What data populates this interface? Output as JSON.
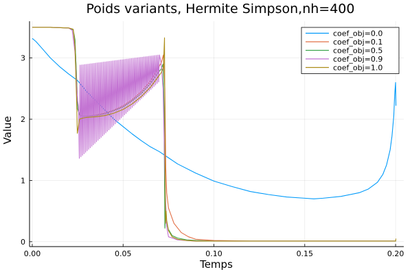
{
  "chart_data": {
    "type": "line",
    "title": "Poids variants, Hermite Simpson,nh=400",
    "xlabel": "Temps",
    "ylabel": "Value",
    "xlim": [
      -0.0015,
      0.2045
    ],
    "ylim": [
      -0.08,
      3.6
    ],
    "xticks": [
      0.0,
      0.05,
      0.1,
      0.15,
      0.2
    ],
    "xtick_labels": [
      "0.00",
      "0.05",
      "0.10",
      "0.15",
      "0.20"
    ],
    "yticks": [
      0,
      1,
      2,
      3
    ],
    "ytick_labels": [
      "0",
      "1",
      "2",
      "3"
    ],
    "grid": true,
    "legend": "top-right",
    "series": [
      {
        "name": "coef_obj=0.0",
        "color": "#009AFA",
        "x": [
          0.0,
          0.002,
          0.005,
          0.01,
          0.015,
          0.02,
          0.025,
          0.03,
          0.035,
          0.04,
          0.045,
          0.05,
          0.055,
          0.06,
          0.065,
          0.07,
          0.075,
          0.08,
          0.09,
          0.1,
          0.11,
          0.12,
          0.13,
          0.14,
          0.15,
          0.155,
          0.16,
          0.17,
          0.18,
          0.185,
          0.19,
          0.193,
          0.195,
          0.197,
          0.198,
          0.199,
          0.1995,
          0.2,
          0.2002
        ],
        "y": [
          3.32,
          3.27,
          3.17,
          3.0,
          2.86,
          2.74,
          2.63,
          2.45,
          2.3,
          2.15,
          2.0,
          1.88,
          1.76,
          1.65,
          1.55,
          1.47,
          1.37,
          1.27,
          1.12,
          0.99,
          0.9,
          0.82,
          0.77,
          0.73,
          0.71,
          0.7,
          0.71,
          0.74,
          0.8,
          0.86,
          0.97,
          1.1,
          1.25,
          1.5,
          1.72,
          2.05,
          2.4,
          2.6,
          2.22
        ]
      },
      {
        "name": "coef_obj=0.1",
        "color": "#E26F46",
        "x": [
          0.0,
          0.01,
          0.02,
          0.0225,
          0.0235,
          0.0245,
          0.025,
          0.026,
          0.028,
          0.03,
          0.035,
          0.04,
          0.045,
          0.05,
          0.055,
          0.06,
          0.065,
          0.069,
          0.071,
          0.0722,
          0.073,
          0.0735,
          0.074,
          0.075,
          0.078,
          0.082,
          0.086,
          0.09,
          0.1,
          0.12,
          0.15,
          0.2,
          0.2002
        ],
        "y": [
          3.5,
          3.5,
          3.49,
          3.47,
          3.3,
          2.6,
          2.17,
          2.07,
          2.05,
          2.05,
          2.07,
          2.1,
          2.15,
          2.22,
          2.32,
          2.45,
          2.62,
          2.82,
          2.92,
          3.05,
          2.5,
          1.2,
          0.8,
          0.55,
          0.3,
          0.15,
          0.08,
          0.04,
          0.02,
          0.01,
          0.01,
          0.01,
          0.02
        ]
      },
      {
        "name": "coef_obj=0.5",
        "color": "#3EA44E",
        "x": [
          0.0,
          0.01,
          0.02,
          0.0225,
          0.0235,
          0.0245,
          0.025,
          0.026,
          0.028,
          0.03,
          0.035,
          0.04,
          0.045,
          0.05,
          0.055,
          0.06,
          0.065,
          0.069,
          0.071,
          0.072,
          0.0725,
          0.073,
          0.0735,
          0.074,
          0.075,
          0.077,
          0.08,
          0.085,
          0.09,
          0.1,
          0.15,
          0.2,
          0.2002
        ],
        "y": [
          3.5,
          3.5,
          3.49,
          3.46,
          3.3,
          2.6,
          2.17,
          2.07,
          2.05,
          2.05,
          2.06,
          2.09,
          2.14,
          2.2,
          2.3,
          2.42,
          2.58,
          2.75,
          2.82,
          2.9,
          2.2,
          0.22,
          0.45,
          0.3,
          0.2,
          0.1,
          0.06,
          0.03,
          0.02,
          0.01,
          0.01,
          0.01,
          0.02
        ]
      },
      {
        "name": "coef_obj=0.9",
        "color": "#C271D2",
        "x": [
          0.0,
          0.01,
          0.02,
          0.022,
          0.0235,
          0.0245,
          0.025,
          0.0255,
          0.07,
          0.071,
          0.072,
          0.0725,
          0.073,
          0.0735,
          0.074,
          0.075,
          0.08,
          0.09,
          0.1,
          0.15,
          0.2
        ],
        "y": [
          3.5,
          3.5,
          3.49,
          3.45,
          3.1,
          2.5,
          2.3,
          2.2,
          2.85,
          2.9,
          2.5,
          1.8,
          1.1,
          0.6,
          0.25,
          0.08,
          0.03,
          0.01,
          0.01,
          0.01,
          0.01
        ],
        "oscillation": {
          "x_start": 0.0255,
          "x_end": 0.07,
          "cycles": 52,
          "upper_start": 2.88,
          "upper_end": 3.05,
          "lower_start": 1.35,
          "lower_end": 2.62
        }
      },
      {
        "name": "coef_obj=1.0",
        "color": "#AC8D18",
        "x": [
          0.0,
          0.01,
          0.02,
          0.0225,
          0.0235,
          0.0245,
          0.0248,
          0.0255,
          0.026,
          0.028,
          0.03,
          0.035,
          0.04,
          0.045,
          0.05,
          0.055,
          0.06,
          0.065,
          0.069,
          0.071,
          0.0722,
          0.0728,
          0.0731,
          0.0734,
          0.0737,
          0.074,
          0.075,
          0.077,
          0.08,
          0.085,
          0.09,
          0.1,
          0.15,
          0.2,
          0.2002
        ],
        "y": [
          3.5,
          3.5,
          3.49,
          3.47,
          3.2,
          2.2,
          1.77,
          1.9,
          2.0,
          2.02,
          2.03,
          2.04,
          2.06,
          2.1,
          2.16,
          2.25,
          2.37,
          2.52,
          2.68,
          2.76,
          2.85,
          3.33,
          1.4,
          0.3,
          0.5,
          0.35,
          0.18,
          0.08,
          0.04,
          0.02,
          0.01,
          0.01,
          0.01,
          0.01,
          0.05
        ]
      }
    ]
  }
}
